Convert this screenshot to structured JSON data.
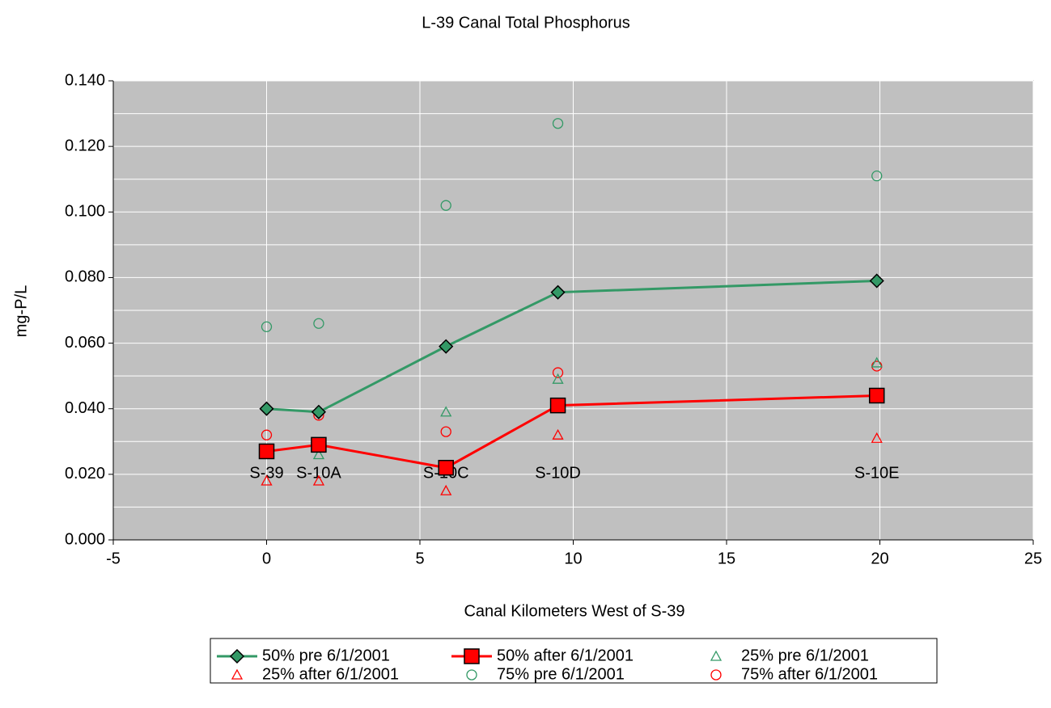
{
  "chart_data": {
    "type": "scatter",
    "title": "L-39 Canal Total Phosphorus",
    "x_label": "Canal Kilometers West of S-39",
    "y_label": "mg-P/L",
    "x": [
      0,
      1.7,
      5.85,
      9.5,
      19.9
    ],
    "stations": [
      "S-39",
      "S-10A",
      "S-10C",
      "S-10D",
      "S-10E"
    ],
    "series": [
      {
        "name": "50% pre 6/1/2001",
        "color": "#339966",
        "marker": "diamond",
        "line": true,
        "values": [
          0.04,
          0.039,
          0.059,
          0.0755,
          0.079
        ]
      },
      {
        "name": "50% after 6/1/2001",
        "color": "#ff0000",
        "marker": "square",
        "line": true,
        "values": [
          0.027,
          0.029,
          0.022,
          0.041,
          0.044
        ]
      },
      {
        "name": "25% pre 6/1/2001",
        "color": "#339966",
        "marker": "triangle",
        "line": false,
        "values": [
          0.027,
          0.026,
          0.039,
          0.049,
          0.054
        ]
      },
      {
        "name": "25% after 6/1/2001",
        "color": "#ff0000",
        "marker": "triangle",
        "line": false,
        "values": [
          0.018,
          0.018,
          0.015,
          0.032,
          0.031
        ]
      },
      {
        "name": "75% pre 6/1/2001",
        "color": "#339966",
        "marker": "circle",
        "line": false,
        "values": [
          0.065,
          0.066,
          0.102,
          0.127,
          0.111
        ]
      },
      {
        "name": "75% after 6/1/2001",
        "color": "#ff0000",
        "marker": "circle",
        "line": false,
        "values": [
          0.032,
          0.038,
          0.033,
          0.051,
          0.053
        ]
      }
    ],
    "xlim": [
      -5,
      25
    ],
    "xticks": [
      -5,
      0,
      5,
      10,
      15,
      20,
      25
    ],
    "ylim": [
      0,
      0.14
    ],
    "yticks": [
      {
        "value": 0,
        "label": "0.000"
      },
      {
        "value": 0.02,
        "label": "0.020"
      },
      {
        "value": 0.04,
        "label": "0.040"
      },
      {
        "value": 0.06,
        "label": "0.060"
      },
      {
        "value": 0.08,
        "label": "0.080"
      },
      {
        "value": 0.1,
        "label": "0.100"
      },
      {
        "value": 0.12,
        "label": "0.120"
      },
      {
        "value": 0.14,
        "label": "0.140"
      }
    ],
    "y_minor_grid": [
      0.01,
      0.03,
      0.05,
      0.07,
      0.09,
      0.11,
      0.13
    ],
    "grid": true,
    "legend": "bottom"
  }
}
